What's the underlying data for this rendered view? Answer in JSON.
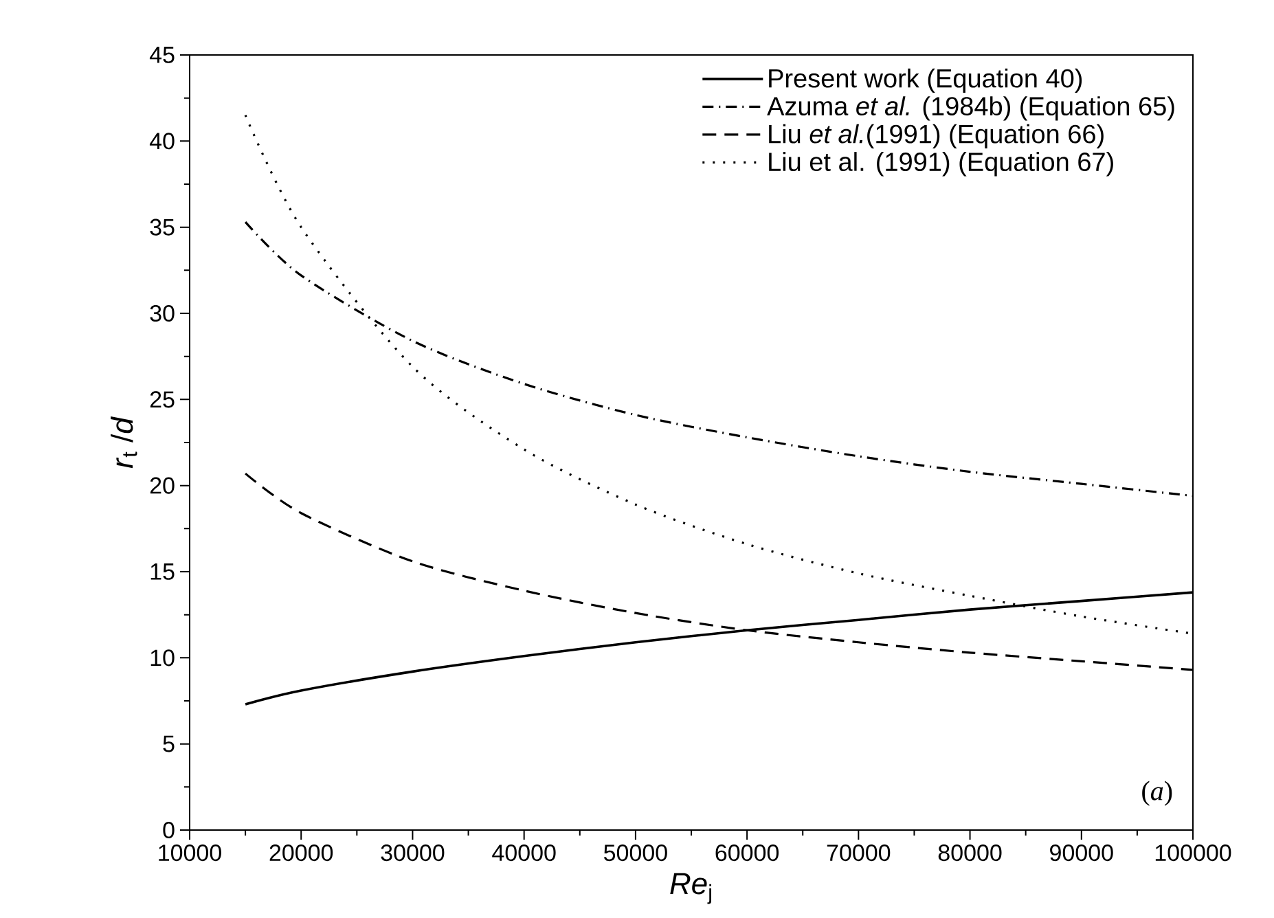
{
  "chart_data": {
    "type": "line",
    "xlabel": "*Re*$_{j}$",
    "ylabel": "*r*$_{t}$ /*d*",
    "x": [
      15000,
      20000,
      30000,
      40000,
      50000,
      60000,
      70000,
      80000,
      90000,
      100000
    ],
    "xlim": [
      10000,
      100000
    ],
    "xticks": [
      10000,
      20000,
      30000,
      40000,
      50000,
      60000,
      70000,
      80000,
      90000,
      100000
    ],
    "ylim": [
      0,
      45
    ],
    "yticks": [
      0,
      5,
      10,
      15,
      20,
      25,
      30,
      35,
      40,
      45
    ],
    "grid": false,
    "legend": "top right",
    "annotations": [
      "(*a*)"
    ],
    "series": [
      {
        "name": "Present work (Equation 40)",
        "color": "#000000",
        "line_style": "solid",
        "values": [
          7.3,
          8.1,
          9.2,
          10.1,
          10.9,
          11.6,
          12.2,
          12.8,
          13.3,
          13.8
        ]
      },
      {
        "name": "Azuma *et al.* (1984b) (Equation 65)",
        "color": "#000000",
        "line_style": "dashdot",
        "values": [
          35.3,
          32.2,
          28.4,
          25.9,
          24.1,
          22.8,
          21.7,
          20.8,
          20.1,
          19.4
        ]
      },
      {
        "name": "Liu *et al.*(1991) (Equation 66)",
        "color": "#000000",
        "line_style": "dashed",
        "values": [
          20.7,
          18.4,
          15.6,
          13.9,
          12.6,
          11.6,
          10.9,
          10.3,
          9.8,
          9.3
        ]
      },
      {
        "name": "Liu et al. (1991) (Equation 67)",
        "color": "#000000",
        "line_style": "dotted",
        "values": [
          41.5,
          35.0,
          26.9,
          22.1,
          18.9,
          16.6,
          14.9,
          13.6,
          12.4,
          11.4
        ]
      }
    ]
  }
}
